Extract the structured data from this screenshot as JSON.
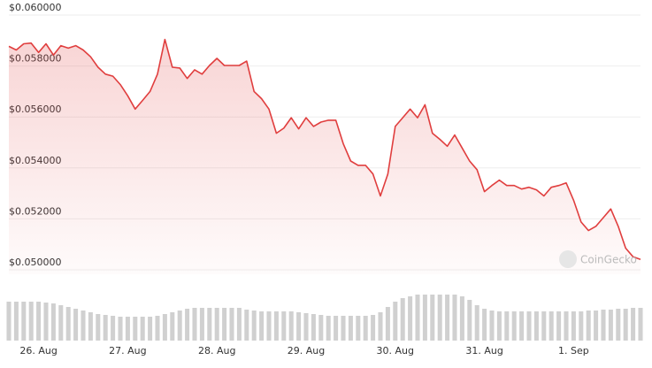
{
  "chart_data": [
    {
      "type": "line",
      "annotation": "CoinGecko",
      "color": "#e03e3e",
      "grid": true,
      "categories": [
        null,
        null,
        null,
        null,
        "26. Aug",
        null,
        null,
        null,
        null,
        null,
        null,
        null,
        null,
        null,
        null,
        null,
        "27. Aug",
        null,
        null,
        null,
        null,
        null,
        null,
        null,
        null,
        null,
        null,
        null,
        "28. Aug",
        null,
        null,
        null,
        null,
        null,
        null,
        null,
        null,
        null,
        null,
        null,
        "29. Aug",
        null,
        null,
        null,
        null,
        null,
        null,
        null,
        null,
        null,
        null,
        null,
        "30. Aug",
        null,
        null,
        null,
        null,
        null,
        null,
        null,
        null,
        null,
        null,
        null,
        "31. Aug",
        null,
        null,
        null,
        null,
        null,
        null,
        null,
        null,
        null,
        null,
        null,
        "1. Sep",
        null,
        null,
        null,
        null,
        null,
        null,
        null,
        null,
        null
      ],
      "values": [
        0.05877,
        0.05863,
        0.05887,
        0.0589,
        0.05853,
        0.05887,
        0.05843,
        0.0588,
        0.0587,
        0.0588,
        0.05863,
        0.05836,
        0.05795,
        0.05768,
        0.0576,
        0.05727,
        0.05683,
        0.05631,
        0.05665,
        0.057,
        0.05768,
        0.05904,
        0.05795,
        0.05792,
        0.05751,
        0.05785,
        0.05768,
        0.05802,
        0.0583,
        0.05802,
        0.05802,
        0.05802,
        0.05819,
        0.057,
        0.05672,
        0.05631,
        0.05536,
        0.05556,
        0.05597,
        0.05553,
        0.05597,
        0.05563,
        0.0558,
        0.05587,
        0.05587,
        0.05495,
        0.05427,
        0.0541,
        0.0541,
        0.05376,
        0.0529,
        0.05376,
        0.05563,
        0.05597,
        0.05631,
        0.05597,
        0.05648,
        0.05536,
        0.05512,
        0.05485,
        0.05529,
        0.05478,
        0.05427,
        0.05393,
        0.05307,
        0.05331,
        0.05352,
        0.05331,
        0.05331,
        0.05317,
        0.05324,
        0.05314,
        0.0529,
        0.05324,
        0.05331,
        0.05341,
        0.05273,
        0.05188,
        0.05154,
        0.05171,
        0.05205,
        0.05239,
        0.05171,
        0.05085,
        0.05051,
        0.05041
      ],
      "ylim": [
        0.05,
        0.06
      ],
      "yticks": [
        {
          "value": 0.05,
          "label": "$0.050000"
        },
        {
          "value": 0.052,
          "label": "$0.052000"
        },
        {
          "value": 0.054,
          "label": "$0.054000"
        },
        {
          "value": 0.056,
          "label": "$0.056000"
        },
        {
          "value": 0.058,
          "label": "$0.058000"
        },
        {
          "value": 0.06,
          "label": "$0.060000"
        }
      ]
    },
    {
      "type": "bar",
      "color": "#d0d0d0",
      "values": [
        44,
        44,
        44,
        44,
        44,
        43,
        42,
        40,
        38,
        36,
        34,
        32,
        30,
        29,
        28,
        27,
        27,
        27,
        27,
        27,
        28,
        30,
        32,
        34,
        36,
        37,
        37,
        37,
        37,
        37,
        37,
        37,
        35,
        34,
        33,
        33,
        33,
        33,
        33,
        32,
        31,
        30,
        29,
        28,
        28,
        28,
        28,
        28,
        28,
        29,
        32,
        38,
        44,
        48,
        50,
        52,
        52,
        52,
        52,
        52,
        52,
        50,
        46,
        40,
        36,
        34,
        33,
        33,
        33,
        33,
        33,
        33,
        33,
        33,
        33,
        33,
        33,
        33,
        34,
        34,
        35,
        35,
        36,
        36,
        37,
        37
      ]
    }
  ]
}
